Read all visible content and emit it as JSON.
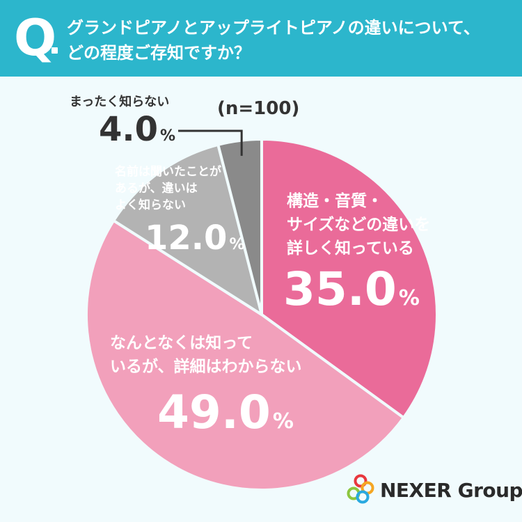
{
  "question": {
    "mark": "Q",
    "lines": [
      "グランドピアノとアップライトピアノの違いについて、",
      "どの程度ご存知ですか？"
    ]
  },
  "chart_data": {
    "type": "pie",
    "sample_size": "(n=100)",
    "percent_symbol": "%",
    "slices": [
      {
        "label_lines": [
          "構造・音質・",
          "サイズなどの違いを",
          "詳しく知っている"
        ],
        "value": 35.0,
        "value_text": "35.0",
        "color": "#ea6b99",
        "label_color": "#ffffff"
      },
      {
        "label_lines": [
          "なんとなくは知って",
          "いるが、詳細はわからない"
        ],
        "value": 49.0,
        "value_text": "49.0",
        "color": "#f2a0bb",
        "label_color": "#ffffff"
      },
      {
        "label_lines": [
          "名前は聞いたことが",
          "あるが、違いは",
          "よく知らない"
        ],
        "value": 12.0,
        "value_text": "12.0",
        "color": "#b3b3b3",
        "label_color": "#ffffff"
      },
      {
        "label_lines": [
          "まったく知らない"
        ],
        "value": 4.0,
        "value_text": "4.0",
        "color": "#8a8a8a",
        "label_color": "#333333"
      }
    ]
  },
  "brand": {
    "name": "NEXER Group",
    "colors": [
      "#e8373e",
      "#f5a623",
      "#8dc63f",
      "#29a9e0"
    ]
  }
}
